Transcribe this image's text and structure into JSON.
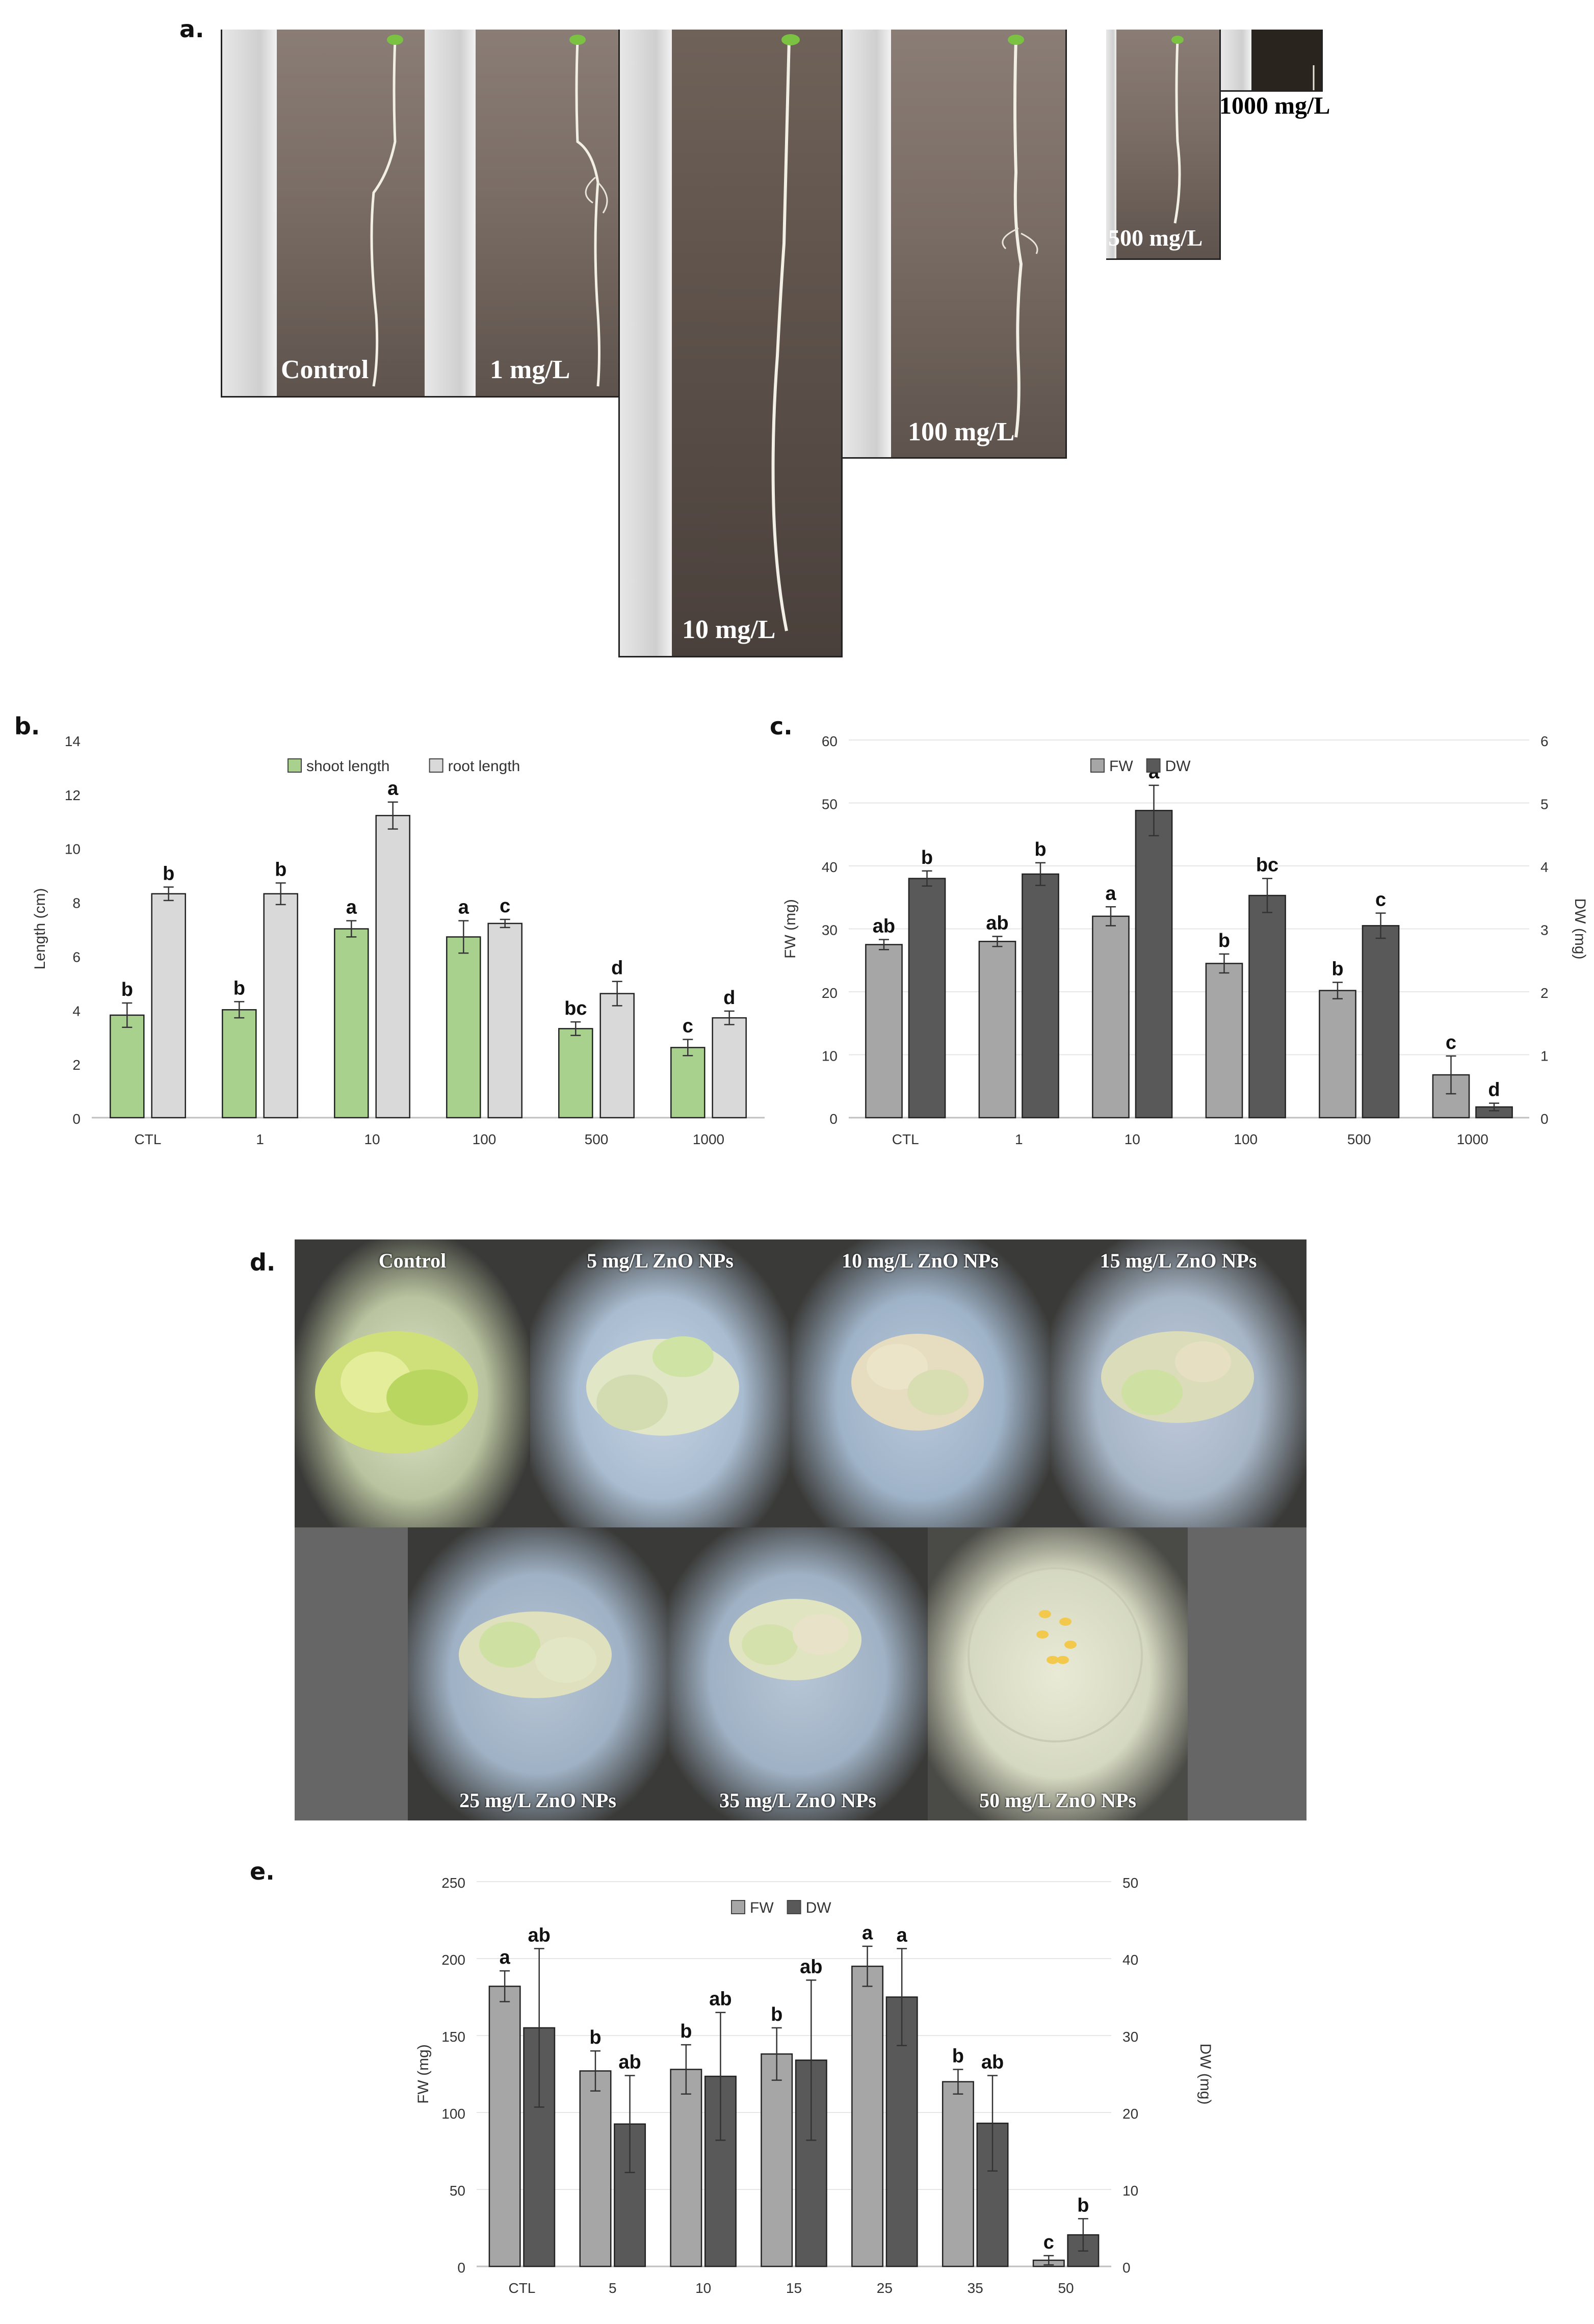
{
  "panels": {
    "a": "a.",
    "b": "b.",
    "c": "c.",
    "d": "d.",
    "e": "e."
  },
  "panel_a": {
    "photos": [
      {
        "label": "Control"
      },
      {
        "label": "1 mg/L"
      },
      {
        "label": "10 mg/L"
      },
      {
        "label": "100 mg/L"
      },
      {
        "label": "500 mg/L"
      },
      {
        "label": "1000 mg/L"
      }
    ]
  },
  "panel_d": {
    "photos": [
      {
        "label": "Control"
      },
      {
        "label": "5 mg/L ZnO NPs"
      },
      {
        "label": "10 mg/L ZnO NPs"
      },
      {
        "label": "15 mg/L ZnO NPs"
      },
      {
        "label": "25 mg/L ZnO NPs"
      },
      {
        "label": "35 mg/L ZnO NPs"
      },
      {
        "label": "50 mg/L ZnO NPs"
      }
    ]
  },
  "colors": {
    "shoot": "#a9d18e",
    "root": "#d9d9d9",
    "fw": "#a6a6a6",
    "dw": "#595959",
    "axis": "#bfbfbf"
  },
  "chart_data": [
    {
      "id": "b",
      "type": "bar",
      "categories": [
        "CTL",
        "1",
        "10",
        "100",
        "500",
        "1000"
      ],
      "ylabel": "Length (cm)",
      "ylim": [
        0,
        14
      ],
      "yticks": [
        0,
        2,
        4,
        6,
        8,
        10,
        12,
        14
      ],
      "grid": false,
      "legend": "top-center",
      "series": [
        {
          "name": "shoot length",
          "values": [
            3.8,
            4.0,
            7.0,
            6.7,
            3.3,
            2.6
          ],
          "errors": [
            0.45,
            0.3,
            0.3,
            0.6,
            0.25,
            0.3
          ],
          "letters": [
            "b",
            "b",
            "a",
            "a",
            "bc",
            "c"
          ]
        },
        {
          "name": "root length",
          "values": [
            8.3,
            8.3,
            11.2,
            7.2,
            4.6,
            3.7
          ],
          "errors": [
            0.25,
            0.4,
            0.5,
            0.15,
            0.45,
            0.25
          ],
          "letters": [
            "b",
            "b",
            "a",
            "c",
            "d",
            "d"
          ]
        }
      ]
    },
    {
      "id": "c",
      "type": "bar",
      "categories": [
        "CTL",
        "1",
        "10",
        "100",
        "500",
        "1000"
      ],
      "ylabel": "FW (mg)",
      "y2label": "DW (mg)",
      "ylim": [
        0,
        60
      ],
      "yticks": [
        0,
        10,
        20,
        30,
        40,
        50,
        60
      ],
      "y2lim": [
        0,
        6
      ],
      "y2ticks": [
        0,
        1,
        2,
        3,
        4,
        5,
        6
      ],
      "grid": true,
      "legend": "top-center",
      "series": [
        {
          "name": "FW",
          "axis": "left",
          "values": [
            27.5,
            28.0,
            32.0,
            24.5,
            20.2,
            6.8
          ],
          "errors": [
            0.8,
            0.8,
            1.5,
            1.5,
            1.3,
            3.0
          ],
          "letters": [
            "ab",
            "ab",
            "a",
            "b",
            "b",
            "c"
          ]
        },
        {
          "name": "DW",
          "axis": "right",
          "values": [
            3.8,
            3.87,
            4.88,
            3.53,
            3.05,
            0.17
          ],
          "errors": [
            0.12,
            0.18,
            0.4,
            0.27,
            0.2,
            0.06
          ],
          "letters": [
            "b",
            "b",
            "a",
            "bc",
            "c",
            "d"
          ]
        }
      ]
    },
    {
      "id": "e",
      "type": "bar",
      "categories": [
        "CTL",
        "5",
        "10",
        "15",
        "25",
        "35",
        "50"
      ],
      "ylabel": "FW (mg)",
      "y2label": "DW (mg)",
      "ylim": [
        0,
        250
      ],
      "yticks": [
        0,
        50,
        100,
        150,
        200,
        250
      ],
      "y2lim": [
        0,
        50
      ],
      "y2ticks": [
        0,
        10,
        20,
        30,
        40,
        50
      ],
      "grid": true,
      "legend": "top-center",
      "series": [
        {
          "name": "FW",
          "axis": "left",
          "values": [
            182,
            127,
            128,
            138,
            195,
            120,
            4
          ],
          "errors": [
            10,
            13,
            16,
            17,
            13,
            8,
            3
          ],
          "letters": [
            "a",
            "b",
            "b",
            "b",
            "a",
            "b",
            "c"
          ]
        },
        {
          "name": "DW",
          "axis": "right",
          "values": [
            31,
            18.5,
            24.7,
            26.8,
            35,
            18.6,
            4.1
          ],
          "errors": [
            10.3,
            6.3,
            8.3,
            10.4,
            6.3,
            6.2,
            2.1
          ],
          "letters": [
            "ab",
            "ab",
            "ab",
            "ab",
            "a",
            "ab",
            "b"
          ]
        }
      ]
    }
  ]
}
